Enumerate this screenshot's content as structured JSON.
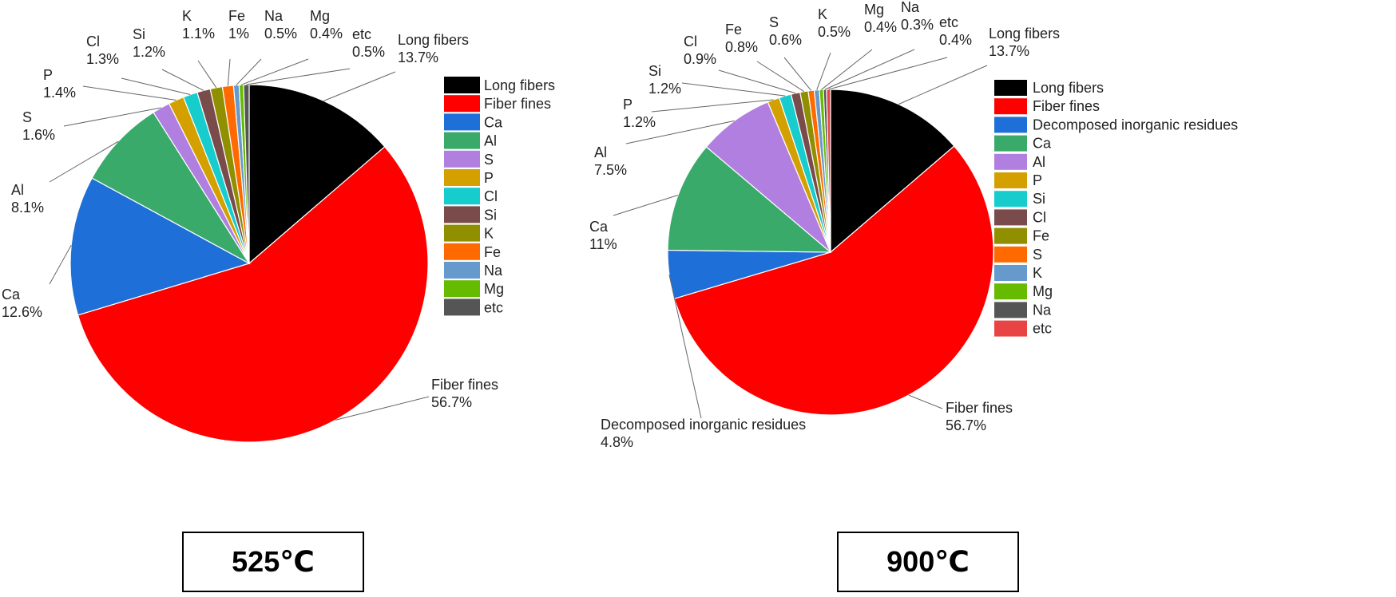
{
  "chart_data": [
    {
      "type": "pie",
      "title": "525℃",
      "slices": [
        {
          "label": "Long fibers",
          "value": 13.7,
          "display": "13.7%",
          "color": "#000000"
        },
        {
          "label": "Fiber fines",
          "value": 56.7,
          "display": "56.7%",
          "color": "#ff0000"
        },
        {
          "label": "Ca",
          "value": 12.6,
          "display": "12.6%",
          "color": "#1f6fd8"
        },
        {
          "label": "Al",
          "value": 8.1,
          "display": "8.1%",
          "color": "#3aaa6a"
        },
        {
          "label": "S",
          "value": 1.6,
          "display": "1.6%",
          "color": "#b07fe0"
        },
        {
          "label": "P",
          "value": 1.4,
          "display": "1.4%",
          "color": "#d4a000"
        },
        {
          "label": "Cl",
          "value": 1.3,
          "display": "1.3%",
          "color": "#16cccc"
        },
        {
          "label": "Si",
          "value": 1.2,
          "display": "1.2%",
          "color": "#7a4b4b"
        },
        {
          "label": "K",
          "value": 1.1,
          "display": "1.1%",
          "color": "#8f8f00"
        },
        {
          "label": "Fe",
          "value": 1.0,
          "display": "1%",
          "color": "#ff6a00"
        },
        {
          "label": "Na",
          "value": 0.5,
          "display": "0.5%",
          "color": "#6699cc"
        },
        {
          "label": "Mg",
          "value": 0.4,
          "display": "0.4%",
          "color": "#66bb00"
        },
        {
          "label": "etc",
          "value": 0.5,
          "display": "0.5%",
          "color": "#555555"
        }
      ],
      "legend": [
        "Long fibers",
        "Fiber fines",
        "Ca",
        "Al",
        "S",
        "P",
        "Cl",
        "Si",
        "K",
        "Fe",
        "Na",
        "Mg",
        "etc"
      ]
    },
    {
      "type": "pie",
      "title": "900℃",
      "slices": [
        {
          "label": "Long fibers",
          "value": 13.7,
          "display": "13.7%",
          "color": "#000000"
        },
        {
          "label": "Fiber fines",
          "value": 56.7,
          "display": "56.7%",
          "color": "#ff0000"
        },
        {
          "label": "Decomposed inorganic residues",
          "value": 4.8,
          "display": "4.8%",
          "color": "#1f6fd8"
        },
        {
          "label": "Ca",
          "value": 11.0,
          "display": "11%",
          "color": "#3aaa6a"
        },
        {
          "label": "Al",
          "value": 7.5,
          "display": "7.5%",
          "color": "#b07fe0"
        },
        {
          "label": "P",
          "value": 1.2,
          "display": "1.2%",
          "color": "#d4a000"
        },
        {
          "label": "Si",
          "value": 1.2,
          "display": "1.2%",
          "color": "#16cccc"
        },
        {
          "label": "Cl",
          "value": 0.9,
          "display": "0.9%",
          "color": "#7a4b4b"
        },
        {
          "label": "Fe",
          "value": 0.8,
          "display": "0.8%",
          "color": "#8f8f00"
        },
        {
          "label": "S",
          "value": 0.6,
          "display": "0.6%",
          "color": "#ff6a00"
        },
        {
          "label": "K",
          "value": 0.5,
          "display": "0.5%",
          "color": "#6699cc"
        },
        {
          "label": "Mg",
          "value": 0.4,
          "display": "0.4%",
          "color": "#66bb00"
        },
        {
          "label": "Na",
          "value": 0.3,
          "display": "0.3%",
          "color": "#555555"
        },
        {
          "label": "etc",
          "value": 0.4,
          "display": "0.4%",
          "color": "#e84444"
        }
      ],
      "legend": [
        "Long fibers",
        "Fiber fines",
        "Decomposed inorganic residues",
        "Ca",
        "Al",
        "P",
        "Si",
        "Cl",
        "Fe",
        "S",
        "K",
        "Mg",
        "Na",
        "etc"
      ]
    }
  ]
}
